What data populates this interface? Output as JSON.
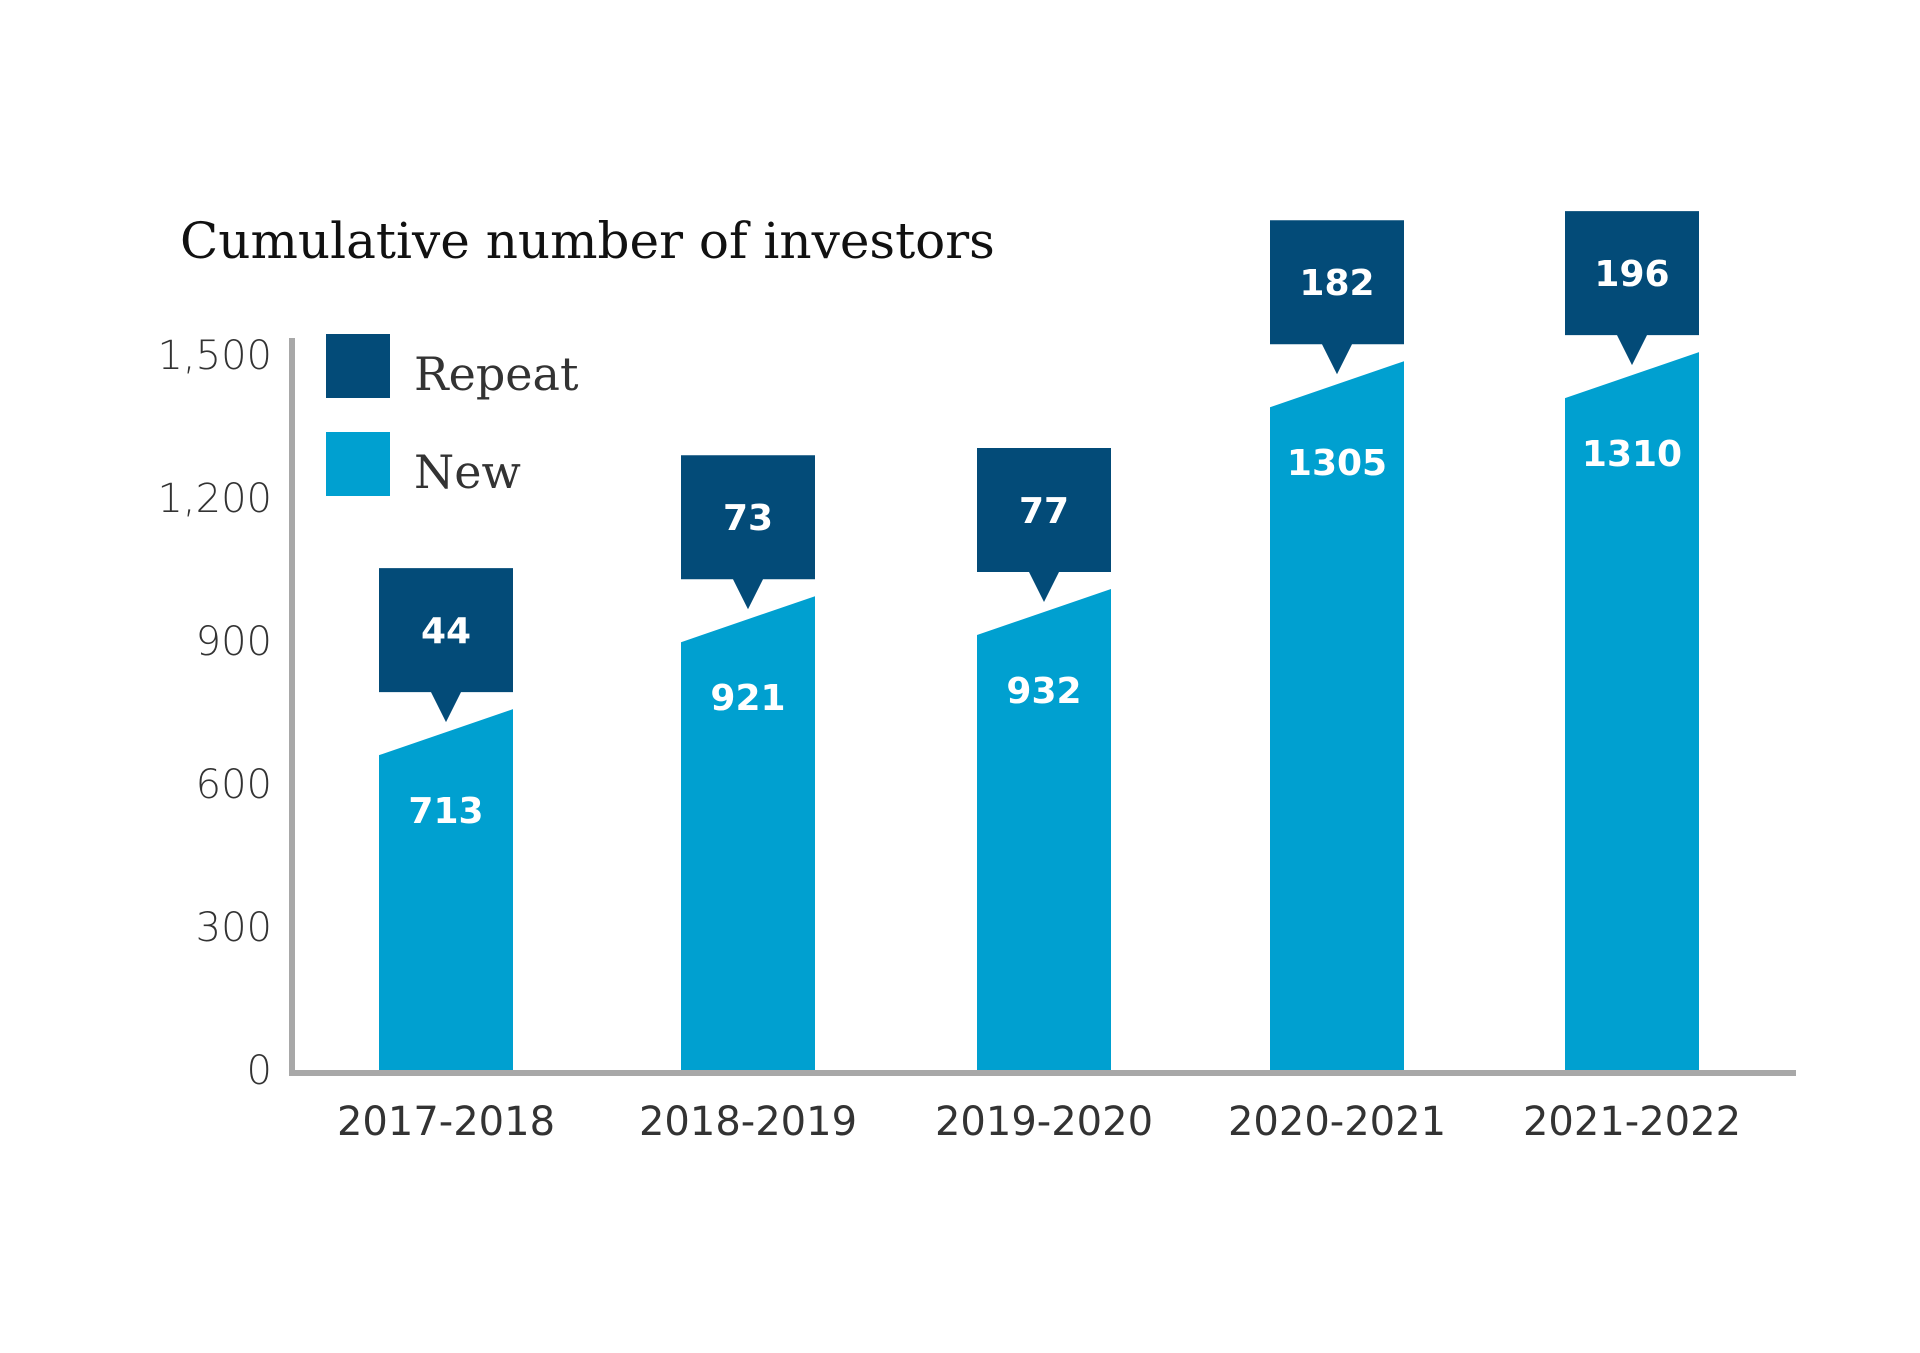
{
  "chart_data": {
    "type": "bar",
    "title": "Cumulative number of investors",
    "categories": [
      "2017-2018",
      "2018-2019",
      "2019-2020",
      "2020-2021",
      "2021-2022"
    ],
    "series": [
      {
        "name": "New",
        "values": [
          713,
          921,
          932,
          1305,
          1310
        ],
        "color": "#00a0d0"
      },
      {
        "name": "Repeat",
        "values": [
          44,
          73,
          77,
          182,
          196
        ],
        "color": "#034b78"
      }
    ],
    "yticks": [
      "0",
      "300",
      "600",
      "900",
      "1,200",
      "1,500"
    ],
    "ytick_values": [
      0,
      300,
      600,
      900,
      1200,
      1500
    ],
    "ylim": [
      0,
      1500
    ],
    "xlabel": "",
    "ylabel": "",
    "legend_position": "top-left",
    "grid": false,
    "axis_color": "#a8a8a8"
  }
}
